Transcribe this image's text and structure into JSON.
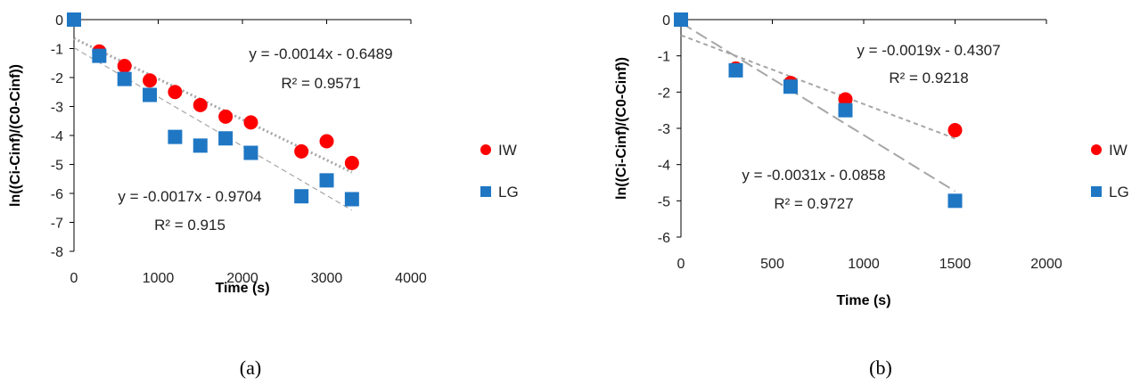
{
  "colors": {
    "IW": "#ff0000",
    "LG": "#1f77c4",
    "trend_iw": "#a6a6a6",
    "trend_lg": "#a6a6a6",
    "axis": "#000000"
  },
  "chart_data": [
    {
      "type": "scatter",
      "title": "",
      "caption": "(a)",
      "xlabel": "Time (s)",
      "ylabel": "ln((Ci-Cinf)/(C0-Cinf))",
      "xlim": [
        0,
        4000
      ],
      "ylim": [
        -8,
        0
      ],
      "xticks": [
        0,
        1000,
        2000,
        3000,
        4000
      ],
      "yticks": [
        0,
        -1,
        -2,
        -3,
        -4,
        -5,
        -6,
        -7,
        -8
      ],
      "grid": false,
      "legend_position": "right",
      "series": [
        {
          "name": "IW",
          "marker": "circle",
          "x": [
            0,
            300,
            600,
            900,
            1200,
            1500,
            1800,
            2100,
            2700,
            3000,
            3300
          ],
          "y": [
            0,
            -1.1,
            -1.6,
            -2.1,
            -2.5,
            -2.95,
            -3.35,
            -3.55,
            -4.55,
            -4.2,
            -4.95
          ]
        },
        {
          "name": "LG",
          "marker": "square",
          "x": [
            0,
            300,
            600,
            900,
            1200,
            1500,
            1800,
            2100,
            2700,
            3000,
            3300
          ],
          "y": [
            0,
            -1.25,
            -2.05,
            -2.6,
            -4.05,
            -4.35,
            -4.1,
            -4.6,
            -6.1,
            -5.55,
            -6.2
          ]
        }
      ],
      "trendlines": [
        {
          "series": "IW",
          "slope": -0.0014,
          "intercept": -0.6489,
          "style": "dotted",
          "equation": "y = -0.0014x - 0.6489",
          "r2": "R² = 0.9571"
        },
        {
          "series": "LG",
          "slope": -0.0017,
          "intercept": -0.9704,
          "style": "dashed",
          "equation": "y = -0.0017x - 0.9704",
          "r2": "R² = 0.915"
        }
      ]
    },
    {
      "type": "scatter",
      "title": "",
      "caption": "(b)",
      "xlabel": "Time (s)",
      "ylabel": "ln((Ci-Cinf)/(C0-Cinf))",
      "xlim": [
        0,
        2000
      ],
      "ylim": [
        -6,
        0
      ],
      "xticks": [
        0,
        500,
        1000,
        1500,
        2000
      ],
      "yticks": [
        0,
        -1,
        -2,
        -3,
        -4,
        -5,
        -6
      ],
      "grid": false,
      "legend_position": "right",
      "series": [
        {
          "name": "IW",
          "marker": "circle",
          "x": [
            0,
            300,
            600,
            900,
            1500
          ],
          "y": [
            0,
            -1.35,
            -1.75,
            -2.2,
            -3.05
          ]
        },
        {
          "name": "LG",
          "marker": "square",
          "x": [
            0,
            300,
            600,
            900,
            1500
          ],
          "y": [
            0,
            -1.4,
            -1.85,
            -2.5,
            -5.0
          ]
        }
      ],
      "trendlines": [
        {
          "series": "IW",
          "slope": -0.0019,
          "intercept": -0.4307,
          "style": "short-dashed",
          "equation": "y = -0.0019x - 0.4307",
          "r2": "R² = 0.9218"
        },
        {
          "series": "LG",
          "slope": -0.0031,
          "intercept": -0.0858,
          "style": "long-dashed",
          "equation": "y = -0.0031x - 0.0858",
          "r2": "R² = 0.9727"
        }
      ]
    }
  ]
}
